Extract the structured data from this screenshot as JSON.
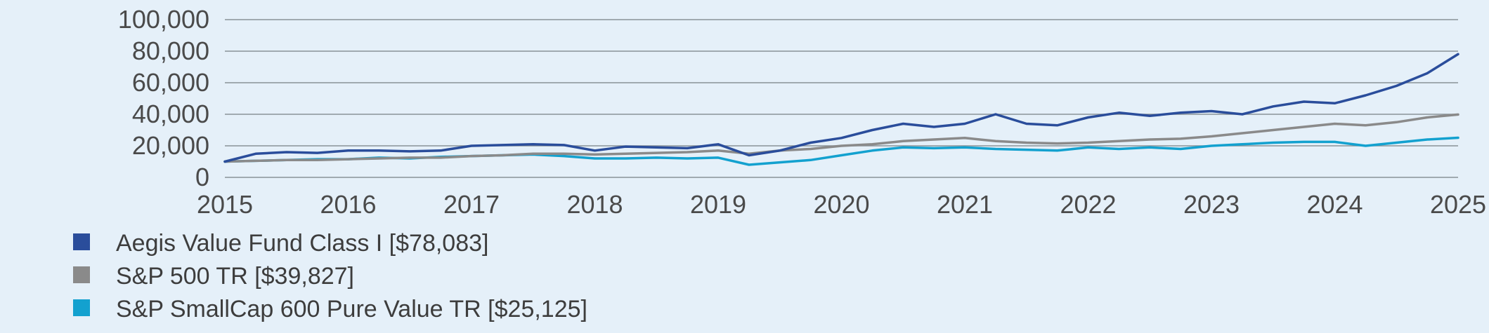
{
  "chart_data": {
    "type": "line",
    "title": "",
    "xlabel": "",
    "ylabel": "",
    "xlim": [
      2015,
      2025
    ],
    "ylim": [
      0,
      100000
    ],
    "grid": true,
    "legend_position": "bottom-left",
    "x_ticks": [
      2015,
      2016,
      2017,
      2018,
      2019,
      2020,
      2021,
      2022,
      2023,
      2024,
      2025
    ],
    "y_ticks": [
      0,
      20000,
      40000,
      60000,
      80000,
      100000
    ],
    "y_tick_labels": [
      "0",
      "20,000",
      "40,000",
      "60,000",
      "80,000",
      "100,000"
    ],
    "x": [
      2015,
      2015.25,
      2015.5,
      2015.75,
      2016,
      2016.25,
      2016.5,
      2016.75,
      2017,
      2017.25,
      2017.5,
      2017.75,
      2018,
      2018.25,
      2018.5,
      2018.75,
      2019,
      2019.25,
      2019.5,
      2019.75,
      2020,
      2020.25,
      2020.5,
      2020.75,
      2021,
      2021.25,
      2021.5,
      2021.75,
      2022,
      2022.25,
      2022.5,
      2022.75,
      2023,
      2023.25,
      2023.5,
      2023.75,
      2024,
      2024.25,
      2024.5,
      2024.75,
      2025
    ],
    "series": [
      {
        "name": "Aegis Value Fund Class I",
        "label": "Aegis Value Fund Class I [$78,083]",
        "color": "#2a4d9b",
        "values": [
          10000,
          15000,
          16000,
          15500,
          17000,
          17000,
          16500,
          17000,
          20000,
          20500,
          21000,
          20500,
          17000,
          19500,
          19000,
          18500,
          21000,
          14000,
          17000,
          22000,
          25000,
          30000,
          34000,
          32000,
          34000,
          40000,
          34000,
          33000,
          38000,
          41000,
          39000,
          41000,
          42000,
          40000,
          45000,
          48000,
          47000,
          52000,
          58000,
          66000,
          78083
        ]
      },
      {
        "name": "S&P 500 TR",
        "label": "S&P 500 TR [$39,827]",
        "color": "#8a8a8a",
        "values": [
          10000,
          10500,
          11000,
          11000,
          11500,
          12000,
          12500,
          12500,
          13500,
          14000,
          15000,
          15000,
          14500,
          15000,
          15500,
          16000,
          17000,
          15000,
          17000,
          18000,
          20000,
          21000,
          23000,
          24000,
          25000,
          23000,
          22000,
          21500,
          22000,
          23000,
          24000,
          24500,
          26000,
          28000,
          30000,
          32000,
          34000,
          33000,
          35000,
          38000,
          39827
        ]
      },
      {
        "name": "S&P SmallCap 600 Pure Value TR",
        "label": "S&P SmallCap 600 Pure Value TR [$25,125]",
        "color": "#13a1cf",
        "values": [
          10000,
          10500,
          11000,
          11500,
          11500,
          12500,
          12000,
          13000,
          13500,
          14000,
          14500,
          13500,
          12000,
          12000,
          12500,
          12000,
          12500,
          8000,
          9500,
          11000,
          14000,
          17000,
          19000,
          18500,
          19000,
          18000,
          17500,
          17000,
          19000,
          18000,
          19000,
          18000,
          20000,
          21000,
          22000,
          22500,
          22500,
          20000,
          22000,
          24000,
          25125
        ]
      }
    ]
  }
}
